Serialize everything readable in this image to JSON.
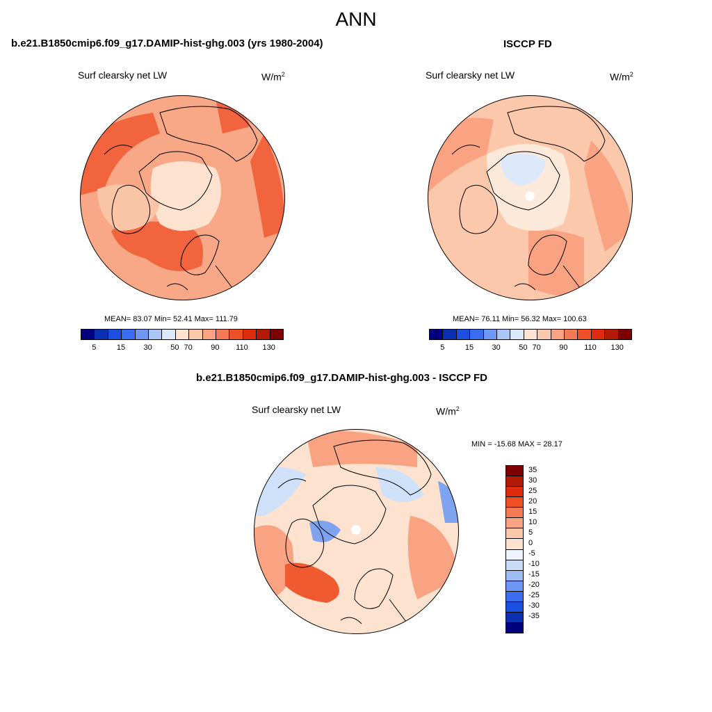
{
  "figure": {
    "title": "ANN",
    "left_panel_title": "b.e21.B1850cmip6.f09_g17.DAMIP-hist-ghg.003 (yrs 1980-2004)",
    "right_panel_title": "ISCCP FD",
    "diff_panel_title": "b.e21.B1850cmip6.f09_g17.DAMIP-hist-ghg.003 - ISCCP FD"
  },
  "panels": {
    "model": {
      "variable": "Surf clearsky net LW",
      "units": "W/m",
      "units_sup": "2",
      "stats": "MEAN=  83.07  Min=  52.41  Max= 111.79",
      "mean": 83.07,
      "min": 52.41,
      "max": 111.79
    },
    "obs": {
      "variable": "Surf clearsky net LW",
      "units": "W/m",
      "units_sup": "2",
      "stats": "MEAN=  76.11  Min=  56.32  Max= 100.63",
      "mean": 76.11,
      "min": 56.32,
      "max": 100.63
    },
    "diff": {
      "variable": "Surf clearsky net LW",
      "units": "W/m",
      "units_sup": "2",
      "stats": "MIN = -15.68 MAX =  28.17",
      "min": -15.68,
      "max": 28.17
    }
  },
  "colorbar_abs": {
    "tick_labels": [
      "5",
      "15",
      "30",
      "50",
      "70",
      "90",
      "110",
      "130"
    ],
    "colors": [
      "#00007f",
      "#0a2fb0",
      "#1a4fe0",
      "#3a6cf0",
      "#6e97f5",
      "#a9c6f7",
      "#dce9fb",
      "#fde3cf",
      "#fcc8ab",
      "#f9a383",
      "#f57a55",
      "#ef4f25",
      "#dd2b0c",
      "#b31a06",
      "#7f0000"
    ]
  },
  "colorbar_diff": {
    "tick_labels": [
      "35",
      "30",
      "25",
      "20",
      "15",
      "10",
      "5",
      "0",
      "-5",
      "-10",
      "-15",
      "-20",
      "-25",
      "-30",
      "-35"
    ],
    "colors": [
      "#7f0000",
      "#b31a06",
      "#dd2b0c",
      "#ef4f25",
      "#f57a55",
      "#f9a383",
      "#fcc8ab",
      "#fde3cf",
      "#eef4fd",
      "#c8dcf8",
      "#9dbcf4",
      "#6e97f5",
      "#3a6cf0",
      "#1a4fe0",
      "#0a2fb0",
      "#00007f"
    ]
  },
  "map_colors": {
    "model_base": "#f8a887",
    "model_light": "#fde3cf",
    "model_mid": "#fac4a7",
    "model_dark": "#f1643d",
    "obs_base": "#fcc8ab",
    "obs_light": "#fde9da",
    "obs_mid": "#f9a383",
    "obs_blue": "#dbe9fb",
    "diff_base": "#fde3cf",
    "diff_mid": "#f9a383",
    "diff_dark": "#ef5a30",
    "diff_blue": "#cfe0f9",
    "diff_blue2": "#7fa3ef"
  }
}
